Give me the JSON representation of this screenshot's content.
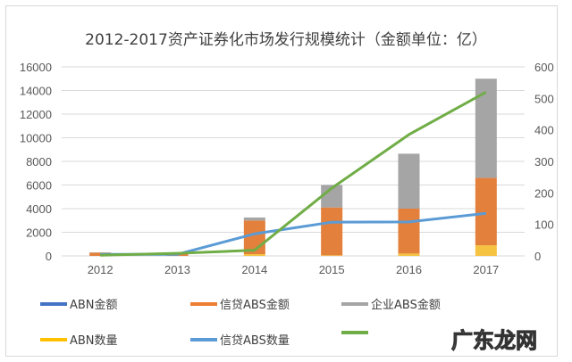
{
  "chart_data": {
    "type": "bar",
    "title": "2012-2017资产证券化市场发行规模统计（金额单位：亿）",
    "categories": [
      "2012",
      "2013",
      "2014",
      "2015",
      "2016",
      "2017"
    ],
    "left_axis": {
      "ylim": [
        0,
        16000
      ],
      "ticks": [
        "0",
        "2000",
        "4000",
        "6000",
        "8000",
        "10000",
        "12000",
        "14000",
        "16000"
      ]
    },
    "right_axis": {
      "ylim": [
        0,
        600
      ],
      "ticks": [
        "0",
        "100",
        "200",
        "300",
        "400",
        "500",
        "600"
      ]
    },
    "grid": true,
    "legend_position": "bottom",
    "bar_series": [
      {
        "name": "ABN金额",
        "legend_color": "#4472c4",
        "bar_color": "#f5c242",
        "values": [
          0,
          0,
          150,
          50,
          200,
          900
        ]
      },
      {
        "name": "信贷ABS金额",
        "legend_color": "#ed7d31",
        "bar_color": "#e3803c",
        "values": [
          280,
          150,
          2850,
          4050,
          3800,
          5700
        ]
      },
      {
        "name": "企业ABS金额",
        "legend_color": "#a5a5a5",
        "bar_color": "#a5a5a5",
        "values": [
          20,
          0,
          250,
          1900,
          4650,
          8400
        ]
      }
    ],
    "line_series": [
      {
        "name": "ABN数量",
        "color": "#ffc000",
        "values": null
      },
      {
        "name": "信贷ABS数量",
        "color": "#5b9bd5",
        "values": [
          5,
          5,
          70,
          107,
          108,
          135
        ]
      },
      {
        "name": "",
        "color": "#70ad47",
        "values": [
          2,
          8,
          18,
          215,
          385,
          520
        ]
      }
    ]
  },
  "watermark": "广东龙网"
}
